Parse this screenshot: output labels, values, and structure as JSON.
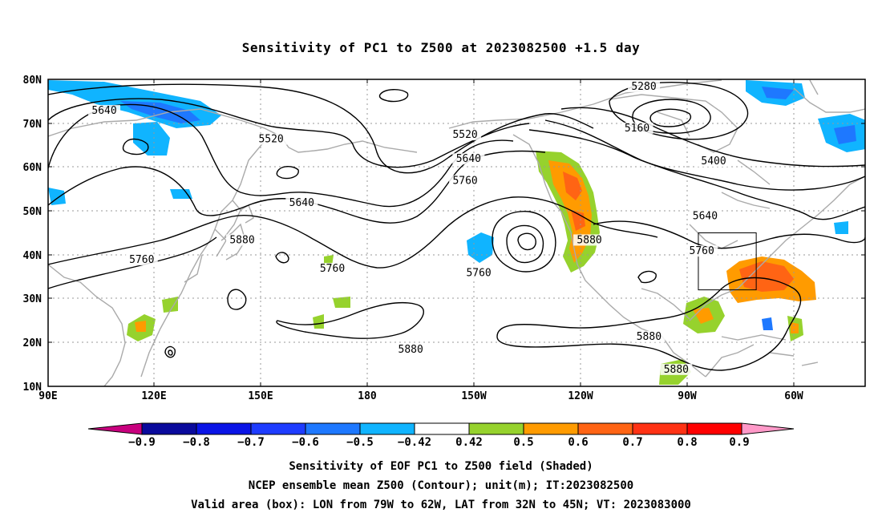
{
  "title": "Sensitivity of PC1 to Z500 at 2023082500 +1.5 day",
  "map": {
    "lon_labels": [
      "90E",
      "120E",
      "150E",
      "180",
      "150W",
      "120W",
      "90W",
      "60W"
    ],
    "lat_labels": [
      "80N",
      "70N",
      "60N",
      "50N",
      "40N",
      "30N",
      "20N",
      "10N"
    ],
    "contour_labels": [
      {
        "text": "5640",
        "lon": 106.5,
        "lat": 72.5
      },
      {
        "text": "5520",
        "lon": 155.5,
        "lat": 66.0
      },
      {
        "text": "5520",
        "lon": -147.5,
        "lat": 67.0
      },
      {
        "text": "5280",
        "lon": -95.0,
        "lat": 78.0
      },
      {
        "text": "5160",
        "lon": -97.0,
        "lat": 68.5
      },
      {
        "text": "5400",
        "lon": -74.5,
        "lat": 61.0
      },
      {
        "text": "5640",
        "lon": -146.5,
        "lat": 61.5
      },
      {
        "text": "5760",
        "lon": -147.5,
        "lat": 56.5
      },
      {
        "text": "5640",
        "lon": 164.5,
        "lat": 51.5
      },
      {
        "text": "5640",
        "lon": -77.0,
        "lat": 48.5
      },
      {
        "text": "5880",
        "lon": 147.0,
        "lat": 43.0
      },
      {
        "text": "5880",
        "lon": -111.0,
        "lat": 43.0
      },
      {
        "text": "5760",
        "lon": -78.0,
        "lat": 40.5
      },
      {
        "text": "5760",
        "lon": 117.5,
        "lat": 38.5
      },
      {
        "text": "5760",
        "lon": 173.5,
        "lat": 36.5
      },
      {
        "text": "5760",
        "lon": -143.5,
        "lat": 35.5
      },
      {
        "text": "5880",
        "lon": -93.5,
        "lat": 21.0
      },
      {
        "text": "5880",
        "lon": -163.5,
        "lat": 18.0
      },
      {
        "text": "5880",
        "lon": -85.5,
        "lat": 13.5
      }
    ],
    "valid_box": {
      "lon_west": -79,
      "lon_east": -62,
      "lat_south": 32,
      "lat_north": 45
    }
  },
  "colorbar": {
    "labels": [
      "−0.9",
      "−0.8",
      "−0.7",
      "−0.6",
      "−0.5",
      "−0.42",
      "0.42",
      "0.5",
      "0.6",
      "0.7",
      "0.8",
      "0.9"
    ],
    "colors": [
      "#c8007e",
      "#0a0a9c",
      "#0a14e6",
      "#1e3cff",
      "#1e78ff",
      "#10b4ff",
      "#ffffff",
      "#96d22d",
      "#ff9b00",
      "#ff6414",
      "#ff3214",
      "#ff0000",
      "#ff99c8"
    ]
  },
  "captions": [
    "Sensitivity of EOF PC1 to Z500 field (Shaded)",
    "NCEP ensemble mean Z500 (Contour); unit(m); IT:2023082500",
    "Valid area (box): LON from 79W to 62W, LAT from 32N to 45N; VT: 2023083000"
  ],
  "colors": {
    "coast": "#aaaaaa",
    "grid": "#999999",
    "contour": "#000000",
    "pos_green": "#96d22d",
    "pos_orange": "#ff9b00",
    "pos_dorange": "#ff6414",
    "neg_lblue": "#10b4ff",
    "neg_blue": "#1e78ff"
  }
}
